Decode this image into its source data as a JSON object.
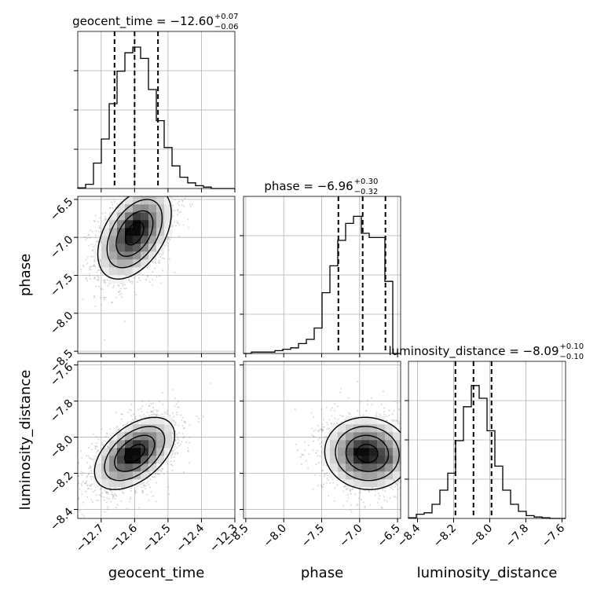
{
  "chart_data": {
    "type": "corner",
    "parameters": [
      {
        "name": "geocent_time",
        "xlabel": "geocent_time",
        "title": {
          "prefix": "geocent_time = −12.60",
          "sup": "+0.07",
          "sub": "−0.06"
        },
        "median": -12.6,
        "lower": -12.66,
        "upper": -12.53,
        "range": [
          -12.77,
          -12.3
        ],
        "ticks": [
          -12.7,
          -12.6,
          -12.5,
          -12.4,
          -12.3
        ],
        "tick_labels": [
          "−12.7",
          "−12.6",
          "−12.5",
          "−12.4",
          "−12.3"
        ],
        "hist": [
          0.005,
          0.03,
          0.18,
          0.35,
          0.6,
          0.83,
          0.96,
          1.0,
          0.92,
          0.7,
          0.48,
          0.29,
          0.16,
          0.08,
          0.04,
          0.02,
          0.01,
          0.0,
          0.0,
          0.0
        ]
      },
      {
        "name": "phase",
        "xlabel": "phase",
        "ylabel": "phase",
        "title": {
          "prefix": "phase = −6.96",
          "sup": "+0.30",
          "sub": "−0.32"
        },
        "median": -6.96,
        "lower": -7.28,
        "upper": -6.66,
        "range": [
          -8.53,
          -6.46
        ],
        "ticks": [
          -8.5,
          -8.0,
          -7.5,
          -7.0,
          -6.5
        ],
        "tick_labels": [
          "−8.5",
          "−8.0",
          "−7.5",
          "−7.0",
          "−6.5"
        ],
        "y_tick_labels": [
          "−8.5",
          "−8.0",
          "−7.5",
          "−7.0",
          "−6.5"
        ],
        "hist": [
          0.0,
          0.01,
          0.01,
          0.01,
          0.02,
          0.03,
          0.04,
          0.07,
          0.1,
          0.18,
          0.43,
          0.62,
          0.8,
          0.92,
          0.97,
          0.85,
          0.82,
          0.82,
          0.51,
          0.0
        ]
      },
      {
        "name": "luminosity_distance",
        "xlabel": "luminosity_distance",
        "ylabel": "luminosity_distance",
        "title": {
          "prefix": "luminosity_distance = −8.09",
          "sup": "+0.10",
          "sub": "−0.10"
        },
        "median": -8.09,
        "lower": -8.19,
        "upper": -7.99,
        "range": [
          -8.45,
          -7.58
        ],
        "ticks": [
          -8.4,
          -8.2,
          -8.0,
          -7.8,
          -7.6
        ],
        "tick_labels": [
          "−8.4",
          "−8.2",
          "−8.0",
          "−7.8",
          "−7.6"
        ],
        "y_tick_labels": [
          "−8.4",
          "−8.2",
          "−8.0",
          "−7.8",
          "−7.6"
        ],
        "hist": [
          0.005,
          0.03,
          0.04,
          0.1,
          0.2,
          0.32,
          0.55,
          0.79,
          0.94,
          0.85,
          0.62,
          0.37,
          0.2,
          0.1,
          0.05,
          0.02,
          0.01,
          0.005,
          0.0,
          0.0
        ]
      }
    ],
    "pairs": [
      {
        "x": "geocent_time",
        "y": "phase",
        "mean": [
          -12.6,
          -6.95
        ],
        "sd": [
          0.055,
          0.3
        ],
        "corr": 0.45,
        "peak": [
          -12.59,
          -6.8
        ],
        "peak2": [
          -12.62,
          -6.93
        ]
      },
      {
        "x": "geocent_time",
        "y": "luminosity_distance",
        "mean": [
          -12.6,
          -8.09
        ],
        "sd": [
          0.06,
          0.1
        ],
        "corr": 0.5,
        "peak": [
          -12.6,
          -8.09
        ],
        "peak2": [
          -12.62,
          -8.09
        ]
      },
      {
        "x": "phase",
        "y": "luminosity_distance",
        "mean": [
          -6.9,
          -8.09
        ],
        "sd": [
          0.28,
          0.1
        ],
        "corr": -0.05,
        "peak": [
          -6.98,
          -8.09
        ],
        "peak2": [
          -6.63,
          -8.12
        ]
      }
    ],
    "grid": true,
    "sample_color": "#8c8c8c",
    "line_color": "#000000"
  }
}
